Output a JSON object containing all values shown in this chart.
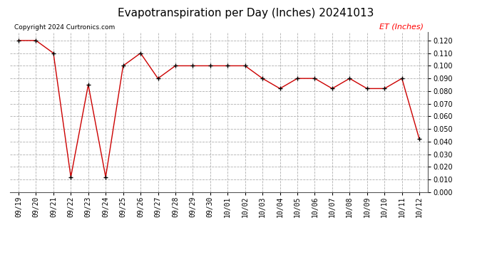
{
  "title": "Evapotranspiration per Day (Inches) 20241013",
  "copyright_text": "Copyright 2024 Curtronics.com",
  "legend_label": "ET (Inches)",
  "line_color": "#cc0000",
  "marker_color": "#000000",
  "background_color": "#ffffff",
  "grid_color": "#b0b0b0",
  "dates": [
    "09/19",
    "09/20",
    "09/21",
    "09/22",
    "09/23",
    "09/24",
    "09/25",
    "09/26",
    "09/27",
    "09/28",
    "09/29",
    "09/30",
    "10/01",
    "10/02",
    "10/03",
    "10/04",
    "10/05",
    "10/06",
    "10/07",
    "10/08",
    "10/09",
    "10/10",
    "10/11",
    "10/12"
  ],
  "values": [
    0.12,
    0.12,
    0.11,
    0.012,
    0.085,
    0.012,
    0.1,
    0.11,
    0.09,
    0.1,
    0.1,
    0.1,
    0.1,
    0.1,
    0.09,
    0.082,
    0.09,
    0.09,
    0.082,
    0.09,
    0.082,
    0.082,
    0.09,
    0.042
  ],
  "ylim": [
    0.0,
    0.1267
  ],
  "yticks": [
    0.0,
    0.01,
    0.02,
    0.03,
    0.04,
    0.05,
    0.06,
    0.07,
    0.08,
    0.09,
    0.1,
    0.11,
    0.12
  ],
  "title_fontsize": 11,
  "tick_fontsize": 7,
  "copyright_fontsize": 6.5,
  "legend_fontsize": 8
}
